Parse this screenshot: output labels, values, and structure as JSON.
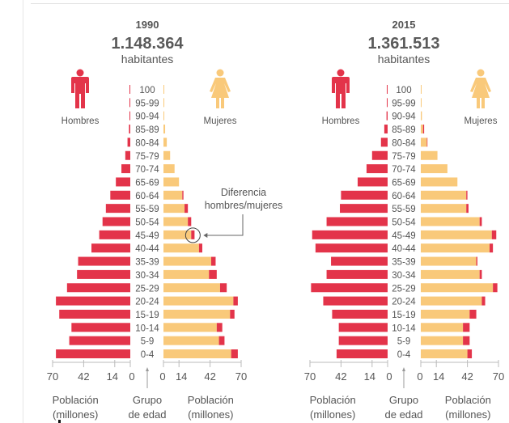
{
  "colors": {
    "men": "#e3344a",
    "women": "#f9c97a",
    "difference": "#e3344a",
    "text": "#555555",
    "axis": "#bbbbbb"
  },
  "icons": {
    "men": "man-figure-icon",
    "women": "woman-figure-icon"
  },
  "chart_data": [
    {
      "type": "bar",
      "subtype": "population-pyramid",
      "title": "1990",
      "total": "1.148.364",
      "total_label": "habitantes",
      "left_label": "Hombres",
      "right_label": "Mujeres",
      "categories": [
        "100",
        "95-99",
        "90-94",
        "85-89",
        "80-84",
        "75-79",
        "70-74",
        "65-69",
        "60-64",
        "55-59",
        "50-54",
        "45-49",
        "40-44",
        "35-39",
        "30-34",
        "25-29",
        "20-24",
        "15-19",
        "10-14",
        "5-9",
        "0-4"
      ],
      "series": [
        {
          "name": "Hombres",
          "values": [
            0.1,
            0.2,
            0.4,
            1.2,
            2.5,
            4.5,
            8,
            13,
            18,
            22,
            25,
            28,
            35,
            47,
            48,
            57,
            67,
            64,
            53,
            55,
            67
          ]
        },
        {
          "name": "Mujeres",
          "values": [
            0.1,
            0.2,
            0.4,
            1.5,
            3,
            6,
            10,
            14,
            17,
            19,
            22,
            25,
            32,
            43,
            41,
            51,
            63,
            60,
            48,
            50,
            61
          ]
        }
      ],
      "difference_note": "Red segment on women's side marks men's excess over women",
      "x_ticks": [
        0,
        14,
        42,
        70
      ],
      "xlim": [
        0,
        70
      ],
      "xlabel_left": [
        "Población",
        "(millones)"
      ],
      "xlabel_center": [
        "Grupo",
        "de edad"
      ],
      "xlabel_right": [
        "Población",
        "(millones)"
      ],
      "annotation": [
        "Diferencia",
        "hombres/mujeres"
      ],
      "annotation_target": "45-49"
    },
    {
      "type": "bar",
      "subtype": "population-pyramid",
      "title": "2015",
      "total": "1.361.513",
      "total_label": "habitantes",
      "left_label": "Hombres",
      "right_label": "Mujeres",
      "categories": [
        "100",
        "95-99",
        "90-94",
        "85-89",
        "80-84",
        "75-79",
        "70-74",
        "65-69",
        "60-64",
        "55-59",
        "50-54",
        "45-49",
        "40-44",
        "35-39",
        "30-34",
        "25-29",
        "20-24",
        "15-19",
        "10-14",
        "5-9",
        "0-4"
      ],
      "series": [
        {
          "name": "Hombres",
          "values": [
            0.2,
            0.4,
            1,
            3,
            6,
            14,
            19,
            27,
            42,
            43,
            55,
            68,
            65,
            51,
            55,
            69,
            58,
            50,
            44,
            44,
            46
          ]
        },
        {
          "name": "Mujeres",
          "values": [
            0.2,
            0.4,
            1,
            2,
            5.5,
            15,
            24,
            33,
            41,
            41,
            53,
            64,
            62,
            50,
            53,
            65,
            55,
            44,
            38,
            38,
            42
          ]
        }
      ],
      "difference_note": "Red segment on women's side marks men's excess over women",
      "x_ticks": [
        0,
        14,
        42,
        70
      ],
      "xlim": [
        0,
        70
      ],
      "xlabel_left": [
        "Población",
        "(millones)"
      ],
      "xlabel_center": [
        "Grupo",
        "de edad"
      ],
      "xlabel_right": [
        "Población",
        "(millones)"
      ]
    }
  ]
}
